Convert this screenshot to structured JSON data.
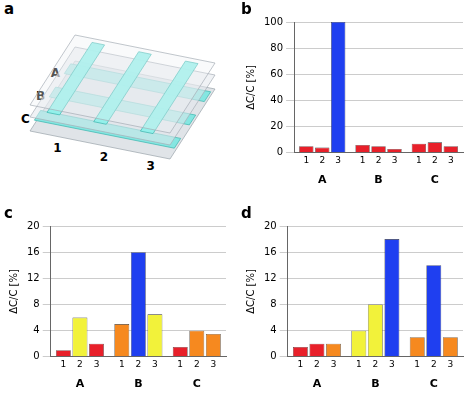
{
  "diagram": {
    "title": "a",
    "rows": [
      "A",
      "B",
      "C"
    ],
    "columns": [
      "1",
      "2",
      "3"
    ]
  },
  "chart_data": [
    {
      "type": "bar",
      "title": "b",
      "ylabel": "ΔC/C [%]",
      "categories": [
        "A",
        "B",
        "C"
      ],
      "series": [
        {
          "name": "1",
          "values": [
            5,
            6,
            7
          ],
          "colors": [
            "#e8202a",
            "#e8202a",
            "#e8202a"
          ]
        },
        {
          "name": "2",
          "values": [
            4,
            5,
            8
          ],
          "colors": [
            "#e8202a",
            "#e8202a",
            "#e8202a"
          ]
        },
        {
          "name": "3",
          "values": [
            100,
            3,
            5
          ],
          "colors": [
            "#1f3ff0",
            "#e8202a",
            "#e8202a"
          ]
        }
      ],
      "ylim": [
        0,
        100
      ],
      "yticks": [
        0,
        20,
        40,
        60,
        80,
        100
      ],
      "grid": true
    },
    {
      "type": "bar",
      "title": "c",
      "ylabel": "ΔC/C [%]",
      "categories": [
        "A",
        "B",
        "C"
      ],
      "series": [
        {
          "name": "1",
          "values": [
            1,
            5,
            1.5
          ],
          "colors": [
            "#e8202a",
            "#f6891f",
            "#e8202a"
          ]
        },
        {
          "name": "2",
          "values": [
            6,
            16,
            4
          ],
          "colors": [
            "#f2f23a",
            "#1f3ff0",
            "#f6891f"
          ]
        },
        {
          "name": "3",
          "values": [
            2,
            6.5,
            3.5
          ],
          "colors": [
            "#e8202a",
            "#f2f23a",
            "#f6891f"
          ]
        }
      ],
      "ylim": [
        0,
        20
      ],
      "yticks": [
        0,
        4,
        8,
        12,
        16,
        20
      ],
      "grid": true
    },
    {
      "type": "bar",
      "title": "d",
      "ylabel": "ΔC/C [%]",
      "categories": [
        "A",
        "B",
        "C"
      ],
      "series": [
        {
          "name": "1",
          "values": [
            1.5,
            4,
            3
          ],
          "colors": [
            "#e8202a",
            "#f2f23a",
            "#f6891f"
          ]
        },
        {
          "name": "2",
          "values": [
            2,
            8,
            14
          ],
          "colors": [
            "#e8202a",
            "#f2f23a",
            "#1f3ff0"
          ]
        },
        {
          "name": "3",
          "values": [
            2,
            18,
            3
          ],
          "colors": [
            "#f6891f",
            "#1f3ff0",
            "#f6891f"
          ]
        }
      ],
      "ylim": [
        0,
        20
      ],
      "yticks": [
        0,
        4,
        8,
        12,
        16,
        20
      ],
      "grid": true
    }
  ]
}
